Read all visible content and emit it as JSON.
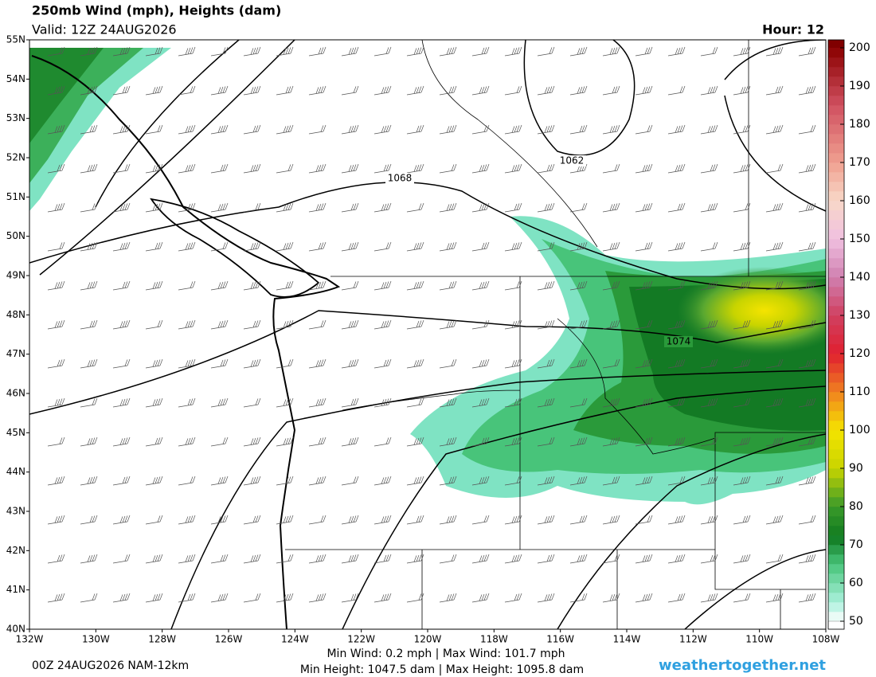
{
  "header": {
    "title": "250mb Wind (mph), Heights (dam)",
    "valid": "Valid: 12Z 24AUG2026",
    "hour": "Hour: 12"
  },
  "map": {
    "lat_labels": [
      "55N",
      "54N",
      "53N",
      "52N",
      "51N",
      "50N",
      "49N",
      "48N",
      "47N",
      "46N",
      "45N",
      "44N",
      "43N",
      "42N",
      "41N",
      "40N"
    ],
    "lon_labels": [
      "132W",
      "130W",
      "128W",
      "126W",
      "124W",
      "122W",
      "120W",
      "118W",
      "116W",
      "114W",
      "112W",
      "110W",
      "108W"
    ],
    "contour_labels": [
      "1062",
      "1068",
      "1074"
    ]
  },
  "colorbar": {
    "min": 50,
    "max": 200,
    "ticks": [
      50,
      60,
      70,
      80,
      90,
      100,
      110,
      120,
      130,
      140,
      150,
      160,
      170,
      180,
      190,
      200
    ]
  },
  "footer": {
    "run": "00Z 24AUG2026 NAM-12km",
    "wind_range": "Min Wind:   0.2 mph | Max Wind: 101.7 mph",
    "height_range": "Min Height: 1047.5 dam | Max Height: 1095.8 dam",
    "site": "weathertogether.net"
  }
}
